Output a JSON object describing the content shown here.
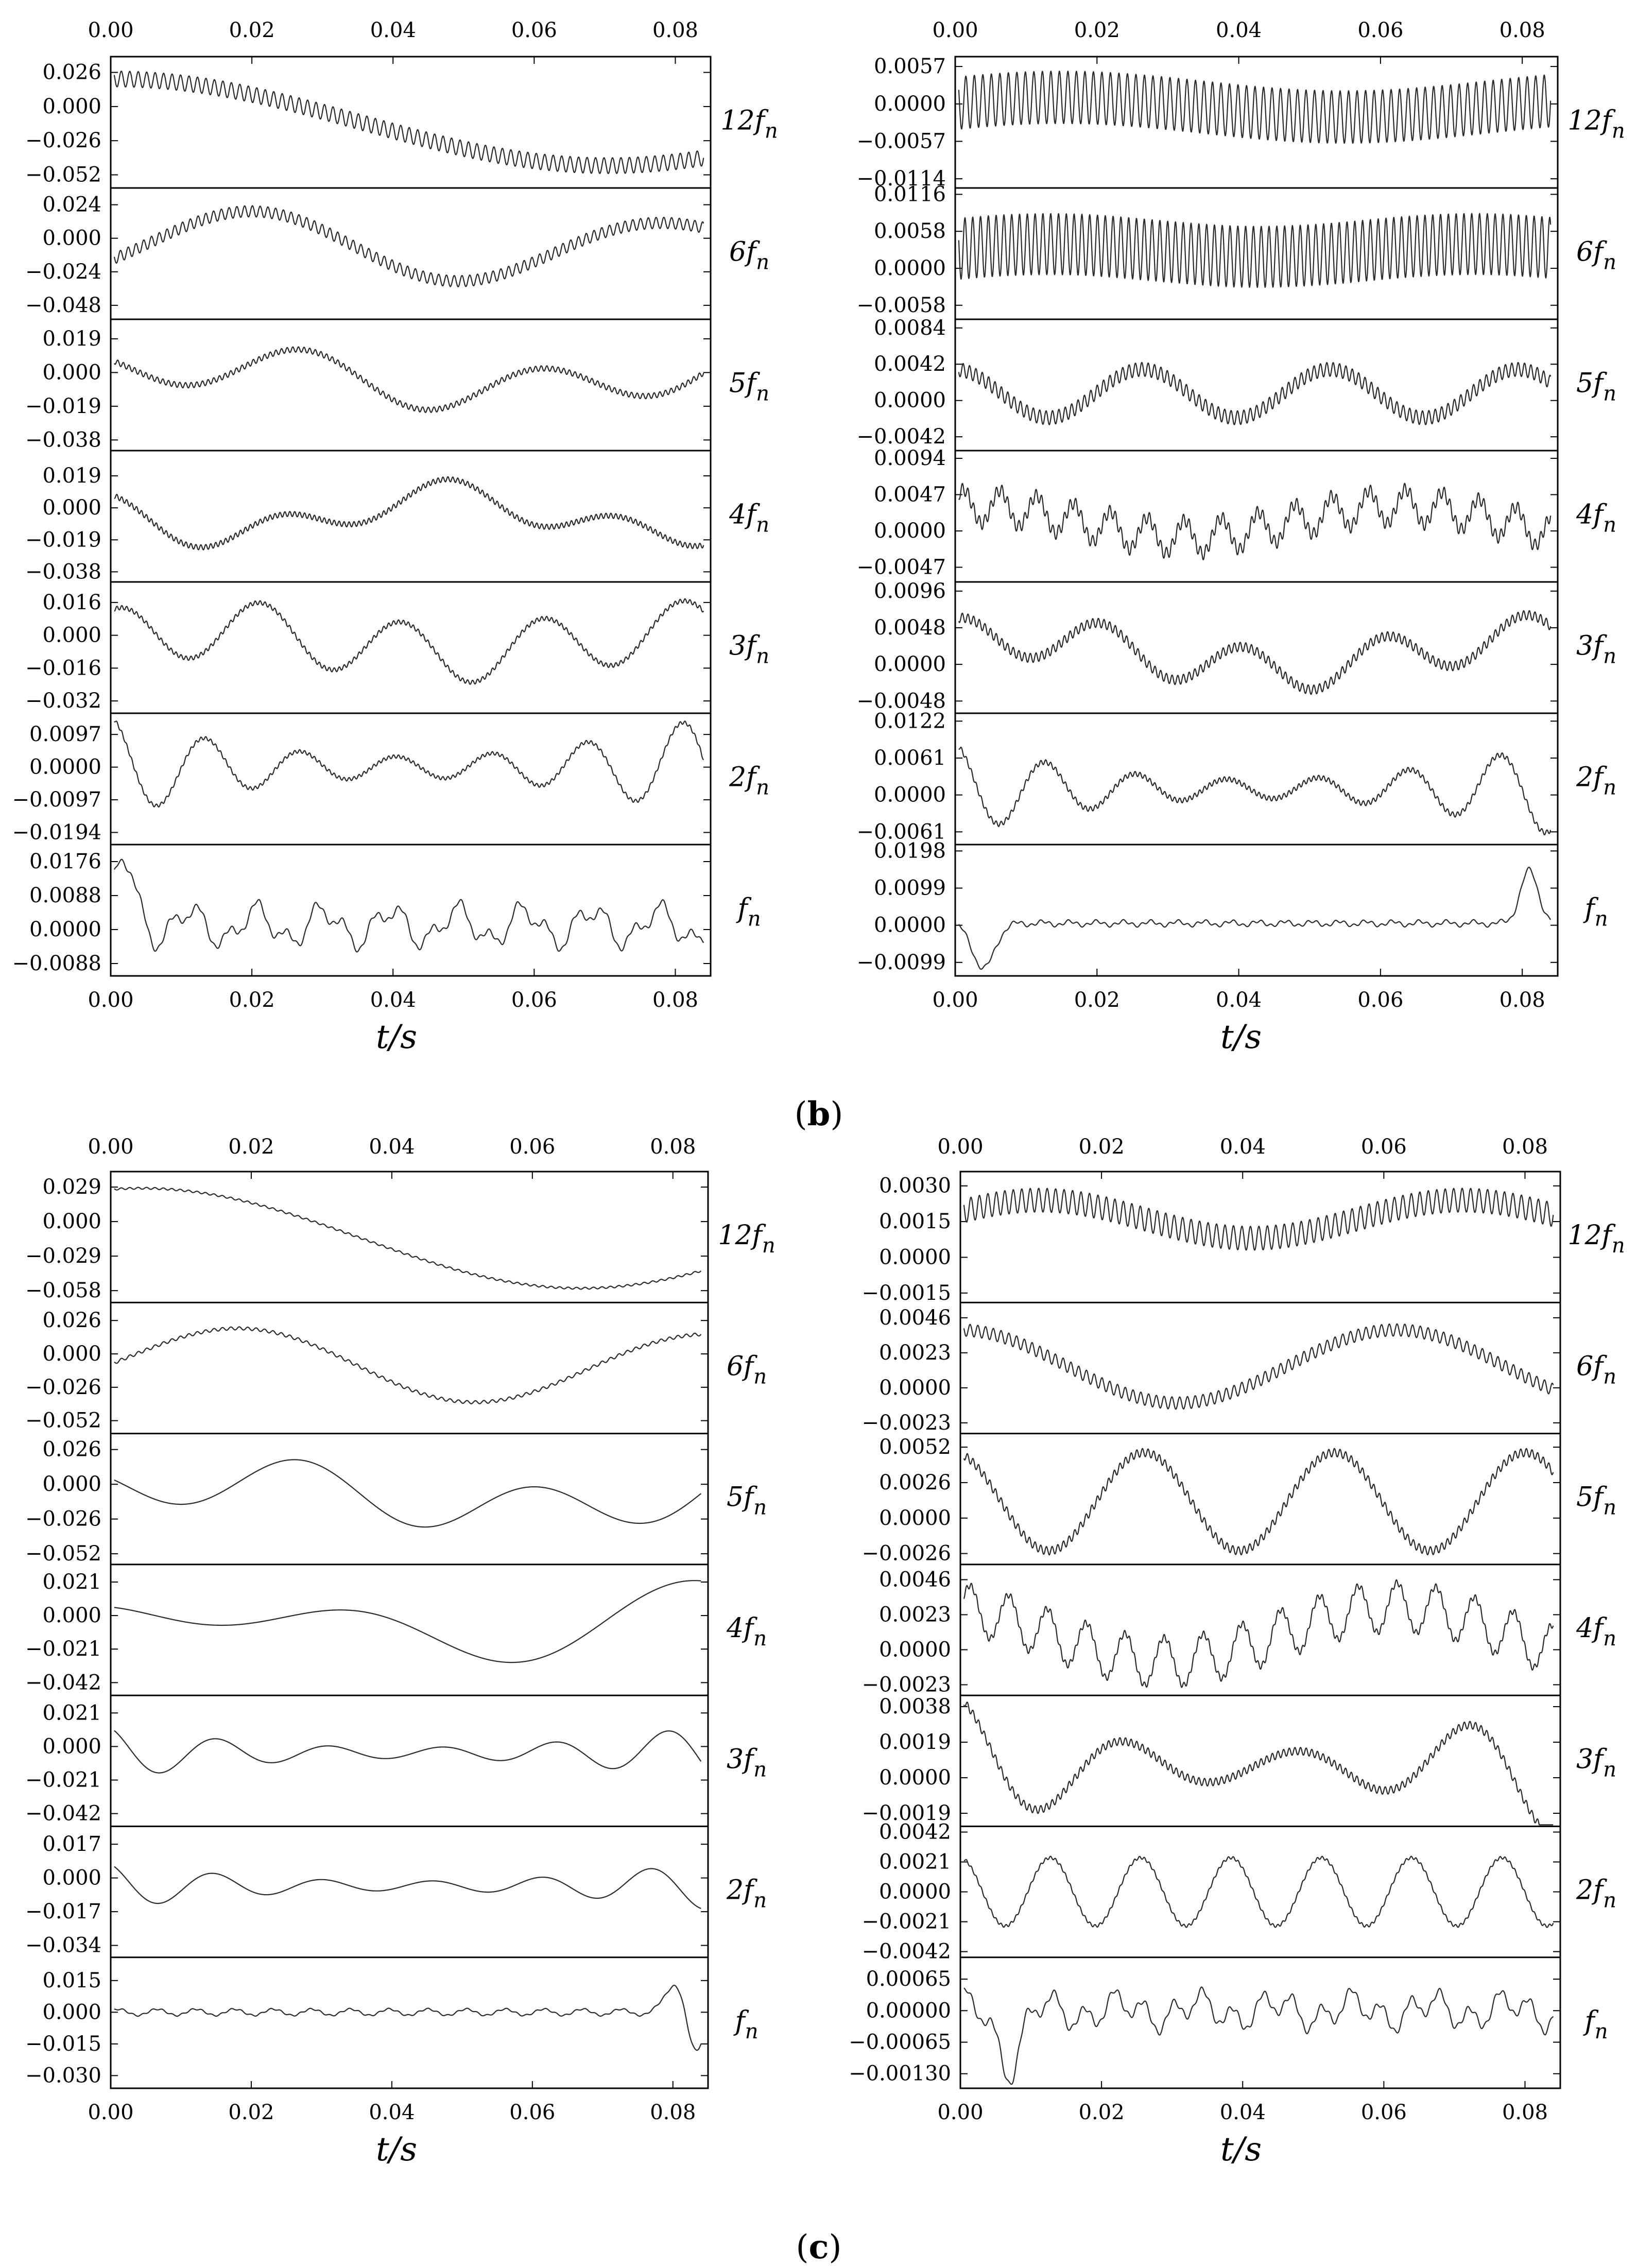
{
  "figure": {
    "captions": [
      {
        "id": "b",
        "open": "(",
        "letter": "b",
        "close": ")"
      },
      {
        "id": "c",
        "open": "(",
        "letter": "c",
        "close": ")"
      }
    ]
  },
  "chart_data": [
    {
      "id": "b-left",
      "type": "line",
      "group": "b",
      "title": "",
      "xlabel": "t/s",
      "xlim": [
        0,
        0.085
      ],
      "xticks": [
        "0.00",
        "0.02",
        "0.04",
        "0.06",
        "0.08"
      ],
      "panels": [
        {
          "label": "12f",
          "sub": "n",
          "yticks": [
            "0.026",
            "0.000",
            "−0.026",
            "−0.052"
          ],
          "ylim": [
            -0.062,
            0.038
          ],
          "components": [
            {
              "A": 0.033,
              "T": 0.14,
              "ph": 1.55
            }
          ],
          "ripple": {
            "A": 0.006,
            "T": 0.0012
          },
          "offset": -0.012
        },
        {
          "label": "6f",
          "sub": "n",
          "yticks": [
            "0.024",
            "0.000",
            "−0.024",
            "−0.048"
          ],
          "ylim": [
            -0.058,
            0.036
          ],
          "components": [
            {
              "A": 0.014,
              "T": 0.052,
              "ph": -1.0
            },
            {
              "A": 0.012,
              "T": 0.075,
              "ph": 0.2
            }
          ],
          "ripple": {
            "A": 0.004,
            "T": 0.0011
          },
          "offset": -0.006
        },
        {
          "label": "5f",
          "sub": "n",
          "yticks": [
            "0.019",
            "0.000",
            "−0.019",
            "−0.038"
          ],
          "ylim": [
            -0.044,
            0.03
          ],
          "components": [
            {
              "A": 0.012,
              "T": 0.033,
              "ph": 2.6
            },
            {
              "A": 0.008,
              "T": 0.08,
              "ph": 0.5
            }
          ],
          "ripple": {
            "A": 0.0015,
            "T": 0.0008
          },
          "offset": -0.003
        },
        {
          "label": "4f",
          "sub": "n",
          "yticks": [
            "0.019",
            "0.000",
            "−0.019",
            "−0.038"
          ],
          "ylim": [
            -0.044,
            0.034
          ],
          "components": [
            {
              "A": 0.009,
              "T": 0.024,
              "ph": 1.6
            },
            {
              "A": 0.012,
              "T": 0.06,
              "ph": 2.9
            }
          ],
          "ripple": {
            "A": 0.0015,
            "T": 0.0007
          },
          "offset": -0.004
        },
        {
          "label": "3f",
          "sub": "n",
          "yticks": [
            "0.016",
            "0.000",
            "−0.016",
            "−0.032"
          ],
          "ylim": [
            -0.038,
            0.026
          ],
          "components": [
            {
              "A": 0.014,
              "T": 0.02,
              "ph": 1.2
            },
            {
              "A": 0.006,
              "T": 0.07,
              "ph": 0.3
            }
          ],
          "ripple": {
            "A": 0.001,
            "T": 0.0007
          },
          "offset": -0.003
        },
        {
          "label": "2f",
          "sub": "n",
          "yticks": [
            "0.0097",
            "0.0000",
            "−0.0097",
            "−0.0194"
          ],
          "ylim": [
            -0.023,
            0.016
          ],
          "components": [
            {
              "A": 0.009,
              "T": 0.0135,
              "ph": 1.6
            }
          ],
          "envelope": "u",
          "ripple": {
            "A": 0.0005,
            "T": 0.0007
          },
          "offset": 0
        },
        {
          "label": "f",
          "sub": "n",
          "yticks": [
            "0.0176",
            "0.0088",
            "0.0000",
            "−0.0088"
          ],
          "ylim": [
            -0.012,
            0.022
          ],
          "components": [
            {
              "A": 0.004,
              "T": 0.0095,
              "ph": 0.5
            },
            {
              "A": 0.0025,
              "T": 0.0041,
              "ph": 1.1
            }
          ],
          "spike": {
            "t": 0.002,
            "A": 0.014
          },
          "ripple": {
            "A": 0.0006,
            "T": 0.0013
          },
          "offset": 0.001
        }
      ]
    },
    {
      "id": "b-right",
      "type": "line",
      "group": "b",
      "title": "",
      "xlabel": "t/s",
      "xlim": [
        0,
        0.085
      ],
      "xticks": [
        "0.00",
        "0.02",
        "0.04",
        "0.06",
        "0.08"
      ],
      "panels": [
        {
          "label": "12f",
          "sub": "n",
          "yticks": [
            "0.0057",
            "0.0000",
            "−0.0057",
            "−0.0114"
          ],
          "ylim": [
            -0.0128,
            0.0072
          ],
          "components": [
            {
              "A": 0.0015,
              "T": 0.08,
              "ph": 0.4
            }
          ],
          "ripple": {
            "A": 0.004,
            "T": 0.0012
          },
          "offset": -0.0005
        },
        {
          "label": "6f",
          "sub": "n",
          "yticks": [
            "0.0116",
            "0.0058",
            "0.0000",
            "−0.0058"
          ],
          "ylim": [
            -0.008,
            0.0126
          ],
          "components": [
            {
              "A": 0.001,
              "T": 0.06,
              "ph": 0.2
            }
          ],
          "ripple": {
            "A": 0.0048,
            "T": 0.0011
          },
          "offset": 0.0028
        },
        {
          "label": "5f",
          "sub": "n",
          "yticks": [
            "0.0084",
            "0.0042",
            "0.0000",
            "−0.0042"
          ],
          "ylim": [
            -0.0058,
            0.0094
          ],
          "components": [
            {
              "A": 0.0028,
              "T": 0.0265,
              "ph": 1.6
            }
          ],
          "ripple": {
            "A": 0.0008,
            "T": 0.0009
          },
          "offset": 0.0008
        },
        {
          "label": "4f",
          "sub": "n",
          "yticks": [
            "0.0094",
            "0.0047",
            "0.0000",
            "−0.0047"
          ],
          "ylim": [
            -0.0066,
            0.0104
          ],
          "components": [
            {
              "A": 0.0022,
              "T": 0.0052,
              "ph": 0.2
            },
            {
              "A": 0.002,
              "T": 0.06,
              "ph": 1.3
            }
          ],
          "ripple": {
            "A": 0.0008,
            "T": 0.0008
          },
          "offset": 0.0012
        },
        {
          "label": "3f",
          "sub": "n",
          "yticks": [
            "0.0096",
            "0.0048",
            "0.0000",
            "−0.0048"
          ],
          "ylim": [
            -0.0064,
            0.0108
          ],
          "components": [
            {
              "A": 0.0028,
              "T": 0.02,
              "ph": 1.4
            },
            {
              "A": 0.0022,
              "T": 0.075,
              "ph": 0.9
            }
          ],
          "ripple": {
            "A": 0.0006,
            "T": 0.0008
          },
          "offset": 0.0015
        },
        {
          "label": "2f",
          "sub": "n",
          "yticks": [
            "0.0122",
            "0.0061",
            "0.0000",
            "−0.0061"
          ],
          "ylim": [
            -0.0082,
            0.0135
          ],
          "components": [
            {
              "A": 0.0045,
              "T": 0.0128,
              "ph": 1.6
            }
          ],
          "envelope": "u",
          "ripple": {
            "A": 0.0004,
            "T": 0.0007
          },
          "offset": 0.001
        },
        {
          "label": "f",
          "sub": "n",
          "yticks": [
            "0.0198",
            "0.0099",
            "0.0000",
            "−0.0099"
          ],
          "ylim": [
            -0.0135,
            0.0215
          ],
          "components": [
            {
              "A": 0.0006,
              "T": 0.0038,
              "ph": 0.0
            }
          ],
          "spike": {
            "t": 0.004,
            "A": -0.012
          },
          "spike2": {
            "t": 0.081,
            "A": 0.014
          },
          "ripple": {
            "A": 0.0004,
            "T": 0.0013
          },
          "offset": 0.0005
        }
      ]
    },
    {
      "id": "c-left",
      "type": "line",
      "group": "c",
      "title": "",
      "xlabel": "t/s",
      "xlim": [
        0,
        0.085
      ],
      "xticks": [
        "0.00",
        "0.02",
        "0.04",
        "0.06",
        "0.08"
      ],
      "panels": [
        {
          "label": "12f",
          "sub": "n",
          "yticks": [
            "0.029",
            "0.000",
            "−0.029",
            "−0.058"
          ],
          "ylim": [
            -0.068,
            0.042
          ],
          "components": [
            {
              "A": 0.042,
              "T": 0.125,
              "ph": 1.35
            }
          ],
          "ripple": {
            "A": 0.0008,
            "T": 0.0012
          },
          "offset": -0.014
        },
        {
          "label": "6f",
          "sub": "n",
          "yticks": [
            "0.026",
            "0.000",
            "−0.026",
            "−0.052"
          ],
          "ylim": [
            -0.062,
            0.04
          ],
          "components": [
            {
              "A": 0.016,
              "T": 0.06,
              "ph": -0.6
            },
            {
              "A": 0.014,
              "T": 0.085,
              "ph": 0.7
            }
          ],
          "ripple": {
            "A": 0.0012,
            "T": 0.0012
          },
          "offset": -0.008
        },
        {
          "label": "5f",
          "sub": "n",
          "yticks": [
            "0.026",
            "0.000",
            "−0.026",
            "−0.052"
          ],
          "ylim": [
            -0.06,
            0.038
          ],
          "components": [
            {
              "A": 0.018,
              "T": 0.033,
              "ph": 2.7
            },
            {
              "A": 0.012,
              "T": 0.085,
              "ph": 0.4
            }
          ],
          "ripple": {
            "A": 0.0,
            "T": 0.001
          },
          "offset": -0.008
        },
        {
          "label": "4f",
          "sub": "n",
          "yticks": [
            "0.021",
            "0.000",
            "−0.021",
            "−0.042"
          ],
          "ylim": [
            -0.05,
            0.032
          ],
          "components": [
            {
              "A": 0.014,
              "T": 0.045,
              "ph": 2.6
            },
            {
              "A": 0.014,
              "T": 0.07,
              "ph": 0.3
            }
          ],
          "ripple": {
            "A": 0.0,
            "T": 0.001
          },
          "offset": -0.006
        },
        {
          "label": "3f",
          "sub": "n",
          "yticks": [
            "0.021",
            "0.000",
            "−0.021",
            "−0.042"
          ],
          "ylim": [
            -0.05,
            0.032
          ],
          "components": [
            {
              "A": 0.01,
              "T": 0.016,
              "ph": 1.9
            }
          ],
          "envelope": "u",
          "ripple": {
            "A": 0.0,
            "T": 0.001
          },
          "offset": -0.004
        },
        {
          "label": "2f",
          "sub": "n",
          "yticks": [
            "0.017",
            "0.000",
            "−0.017",
            "−0.034"
          ],
          "ylim": [
            -0.04,
            0.026
          ],
          "components": [
            {
              "A": 0.007,
              "T": 0.0155,
              "ph": 1.9
            }
          ],
          "envelope": "u",
          "ripple": {
            "A": 0.0,
            "T": 0.001
          },
          "offset": -0.004
        },
        {
          "label": "f",
          "sub": "n",
          "yticks": [
            "0.015",
            "0.000",
            "−0.015",
            "−0.030"
          ],
          "ylim": [
            -0.036,
            0.026
          ],
          "components": [
            {
              "A": 0.0015,
              "T": 0.0055,
              "ph": 0.3
            }
          ],
          "spike": {
            "t": 0.081,
            "A": 0.018
          },
          "spike2": {
            "t": 0.083,
            "A": -0.026
          },
          "ripple": {
            "A": 0.0004,
            "T": 0.0014
          },
          "offset": 0.0
        }
      ]
    },
    {
      "id": "c-right",
      "type": "line",
      "group": "c",
      "title": "",
      "xlabel": "t/s",
      "xlim": [
        0,
        0.085
      ],
      "xticks": [
        "0.00",
        "0.02",
        "0.04",
        "0.06",
        "0.08"
      ],
      "panels": [
        {
          "label": "12f",
          "sub": "n",
          "yticks": [
            "0.0030",
            "0.0015",
            "0.0000",
            "−0.0015"
          ],
          "ylim": [
            -0.0019,
            0.0036
          ],
          "components": [
            {
              "A": 0.0008,
              "T": 0.06,
              "ph": 0.4
            }
          ],
          "ripple": {
            "A": 0.0005,
            "T": 0.0012
          },
          "offset": 0.0016
        },
        {
          "label": "6f",
          "sub": "n",
          "yticks": [
            "0.0046",
            "0.0023",
            "0.0000",
            "−0.0023"
          ],
          "ylim": [
            -0.003,
            0.0056
          ],
          "components": [
            {
              "A": 0.0024,
              "T": 0.062,
              "ph": 1.6
            }
          ],
          "ripple": {
            "A": 0.0004,
            "T": 0.0011
          },
          "offset": 0.0014
        },
        {
          "label": "5f",
          "sub": "n",
          "yticks": [
            "0.0052",
            "0.0026",
            "0.0000",
            "−0.0026"
          ],
          "ylim": [
            -0.0034,
            0.0062
          ],
          "components": [
            {
              "A": 0.0036,
              "T": 0.027,
              "ph": 1.8
            }
          ],
          "ripple": {
            "A": 0.0003,
            "T": 0.0008
          },
          "offset": 0.0012
        },
        {
          "label": "4f",
          "sub": "n",
          "yticks": [
            "0.0046",
            "0.0023",
            "0.0000",
            "−0.0023"
          ],
          "ylim": [
            -0.003,
            0.0056
          ],
          "components": [
            {
              "A": 0.0016,
              "T": 0.0055,
              "ph": 0.0
            },
            {
              "A": 0.0018,
              "T": 0.065,
              "ph": 1.9
            }
          ],
          "ripple": {
            "A": 0.0002,
            "T": 0.0007
          },
          "offset": 0.001
        },
        {
          "label": "3f",
          "sub": "n",
          "yticks": [
            "0.0038",
            "0.0019",
            "0.0000",
            "−0.0019"
          ],
          "ylim": [
            -0.0026,
            0.0044
          ],
          "components": [
            {
              "A": 0.0022,
              "T": 0.024,
              "ph": 1.7
            }
          ],
          "envelope": "u",
          "ripple": {
            "A": 0.0002,
            "T": 0.0008
          },
          "offset": 0.0006
        },
        {
          "label": "2f",
          "sub": "n",
          "yticks": [
            "0.0042",
            "0.0021",
            "0.0000",
            "−0.0021",
            "−0.0042"
          ],
          "ylim": [
            -0.0046,
            0.0046
          ],
          "components": [
            {
              "A": 0.0024,
              "T": 0.0128,
              "ph": 1.6
            }
          ],
          "ripple": {
            "A": 0.0001,
            "T": 0.0007
          },
          "offset": 0.0
        },
        {
          "label": "f",
          "sub": "n",
          "yticks": [
            "0.00065",
            "0.00000",
            "−0.00065",
            "−0.00130"
          ],
          "ylim": [
            -0.0016,
            0.0011
          ],
          "components": [
            {
              "A": 0.00025,
              "T": 0.0042,
              "ph": 0.4
            },
            {
              "A": 0.0002,
              "T": 0.011,
              "ph": 1.2
            }
          ],
          "spike": {
            "t": 0.007,
            "A": -0.0011
          },
          "ripple": {
            "A": 6e-05,
            "T": 0.0013
          },
          "offset": 0.0
        }
      ]
    }
  ]
}
